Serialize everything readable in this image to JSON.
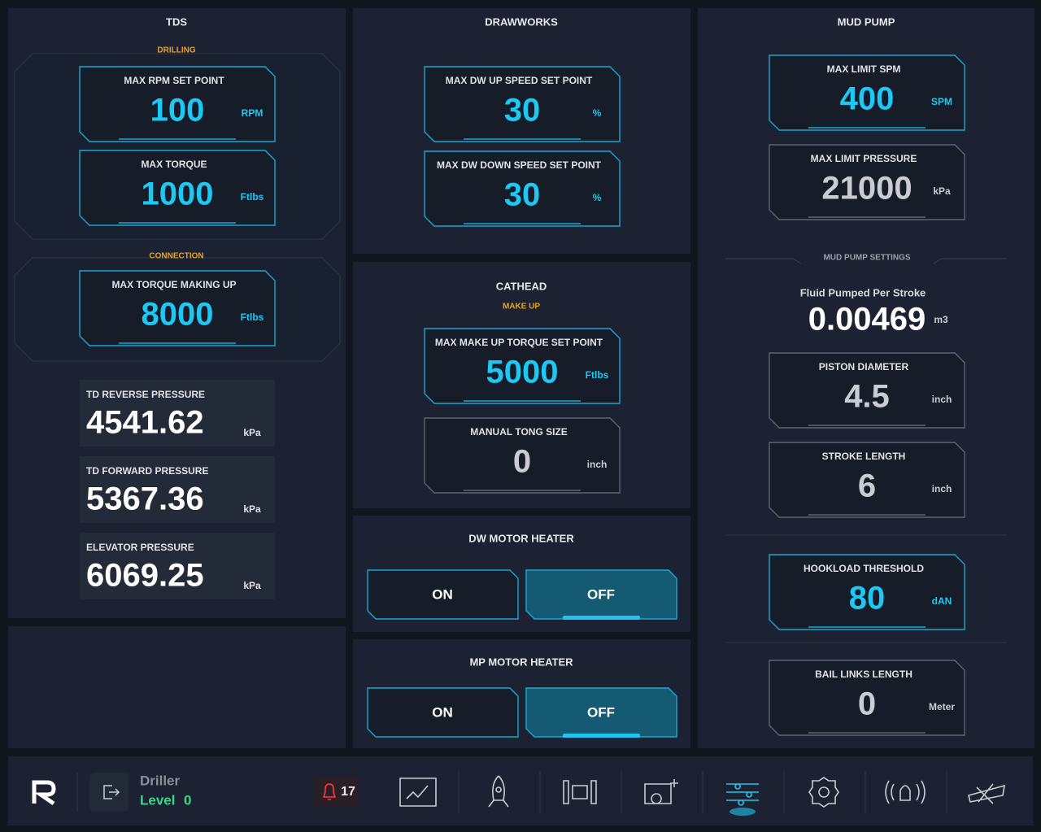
{
  "tds": {
    "title": "TDS",
    "drilling": {
      "label": "DRILLING",
      "settings": [
        {
          "label": "MAX RPM SET POINT",
          "value": 100,
          "unit": "RPM"
        },
        {
          "label": "MAX TORQUE",
          "value": 1000,
          "unit": "Ftlbs"
        }
      ]
    },
    "connection": {
      "label": "CONNECTION",
      "settings": [
        {
          "label": "MAX TORQUE MAKING UP",
          "value": 8000,
          "unit": "Ftlbs"
        }
      ]
    },
    "readings": [
      {
        "label": "TD REVERSE PRESSURE",
        "value": 4541.62,
        "unit": "kPa"
      },
      {
        "label": "TD FORWARD PRESSURE",
        "value": 5367.36,
        "unit": "kPa"
      },
      {
        "label": "ELEVATOR PRESSURE",
        "value": 6069.25,
        "unit": "kPa"
      }
    ]
  },
  "drawworks": {
    "title": "DRAWWORKS",
    "settings": [
      {
        "label": "MAX DW UP SPEED SET POINT",
        "value": 30,
        "unit": "%"
      },
      {
        "label": "MAX DW DOWN SPEED SET POINT",
        "value": 30,
        "unit": "%"
      }
    ]
  },
  "cathead": {
    "title": "CATHEAD",
    "subtitle": "MAKE UP",
    "settings": [
      {
        "label": "MAX MAKE UP TORQUE SET POINT",
        "value": 5000,
        "unit": "Ftlbs"
      },
      {
        "label": "MANUAL TONG SIZE",
        "value": 0,
        "unit": "inch"
      }
    ]
  },
  "dw_motor_heater": {
    "title": "DW MOTOR HEATER",
    "buttons": [
      "ON",
      "OFF"
    ]
  },
  "mp_motor_heater": {
    "title": "MP MOTOR HEATER",
    "buttons": [
      "ON",
      "OFF"
    ]
  },
  "mud_pump": {
    "title": "MUD PUMP",
    "limits": [
      {
        "label": "MAX LIMIT SPM",
        "value": 400,
        "unit": "SPM"
      },
      {
        "label": "MAX LIMIT PRESSURE",
        "value": 21000,
        "unit": "kPa"
      }
    ],
    "settings_label": "MUD PUMP SETTINGS",
    "fluid_per_stroke": {
      "label": "Fluid Pumped Per Stroke",
      "value": 0.00469,
      "unit": "m3"
    },
    "settings": [
      {
        "label": "PISTON DIAMETER",
        "value": 4.5,
        "unit": "inch"
      },
      {
        "label": "STROKE LENGTH",
        "value": 6,
        "unit": "inch"
      }
    ],
    "hookload": {
      "label": "HOOKLOAD THRESHOLD",
      "value": 80,
      "unit": "dAN"
    },
    "bail_links": {
      "label": "BAIL LINKS LENGTH",
      "value": 0,
      "unit": "Meter"
    }
  },
  "footer": {
    "role": "Driller",
    "level_label": "Level",
    "level": 0,
    "alert_count": 17
  }
}
